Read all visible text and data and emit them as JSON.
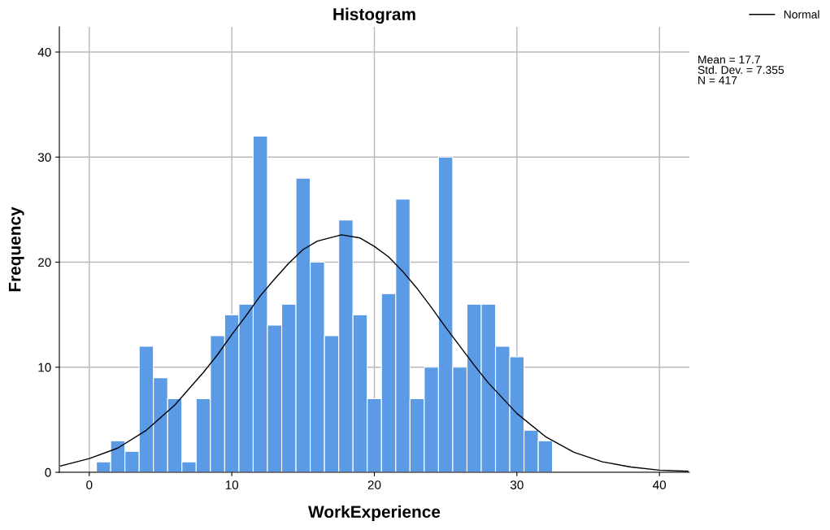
{
  "chart_data": {
    "type": "histogram",
    "title": "Histogram",
    "xlabel": "WorkExperience",
    "ylabel": "Frequency",
    "bins": [
      0.5,
      1.5,
      2.5,
      3.5,
      4.5,
      5.5,
      6.5,
      7.5,
      8.5,
      9.5,
      10.5,
      11.5,
      12.5,
      13.5,
      14.5,
      15.5,
      16.5,
      17.5,
      18.5,
      19.5,
      20.5,
      21.5,
      22.5,
      23.5,
      24.5,
      25.5,
      26.5,
      27.5,
      28.5,
      29.5,
      30.5,
      31.5,
      32.5
    ],
    "values": [
      1,
      3,
      2,
      12,
      9,
      7,
      1,
      7,
      13,
      15,
      16,
      32,
      14,
      16,
      28,
      20,
      13,
      24,
      15,
      7,
      17,
      26,
      7,
      10,
      30,
      10,
      16,
      16,
      12,
      11,
      4,
      3
    ],
    "color": "#5b9be6",
    "series": [
      {
        "name": "Normal",
        "type": "line",
        "color": "#000000",
        "x": [
          -2,
          0,
          2,
          4,
          6,
          8,
          9,
          10,
          11,
          12,
          13,
          14,
          15,
          16,
          17.7,
          19,
          20,
          21,
          22,
          23,
          24,
          25,
          26,
          27,
          28,
          30,
          32,
          34,
          36,
          38,
          40,
          42
        ],
        "values": [
          0.6,
          1.3,
          2.3,
          4.0,
          6.4,
          9.5,
          11.2,
          13.1,
          14.9,
          16.8,
          18.4,
          19.9,
          21.2,
          22.0,
          22.6,
          22.3,
          21.5,
          20.5,
          19.1,
          17.5,
          15.7,
          13.8,
          12.0,
          10.2,
          8.5,
          5.6,
          3.4,
          1.9,
          1.0,
          0.5,
          0.2,
          0.1
        ]
      }
    ],
    "annotations": [
      "Mean = 17.7",
      "Std. Dev. = 7.355",
      "N = 417"
    ],
    "xlim": [
      -2.1,
      42.1
    ],
    "ylim": [
      0,
      42.4
    ],
    "xticks": [
      0,
      10,
      20,
      30,
      40
    ],
    "yticks": [
      0,
      10,
      20,
      30,
      40
    ],
    "grid": true,
    "legend": "top right",
    "marker": "none",
    "line_style": "solid"
  }
}
